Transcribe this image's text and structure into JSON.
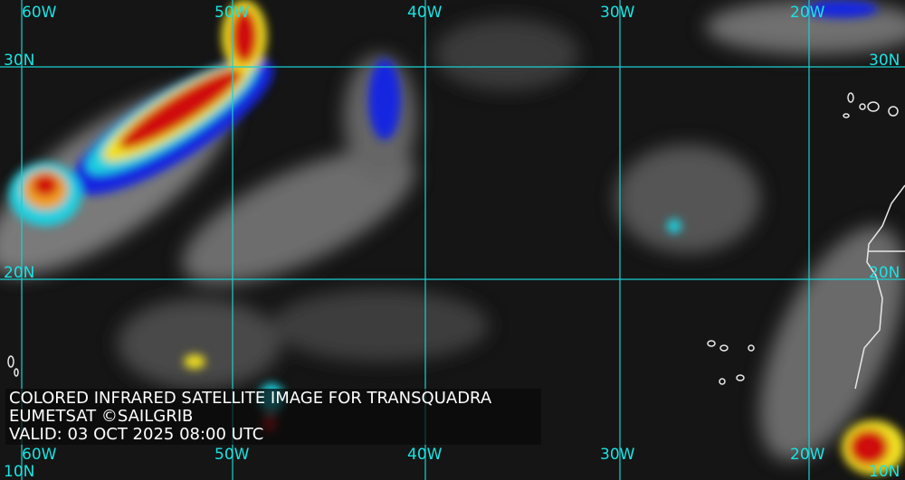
{
  "caption": {
    "title": "COLORED INFRARED SATELLITE IMAGE FOR TRANSQUADRA",
    "source": "EUMETSAT ©SAILGRIB",
    "valid": "VALID:  03 OCT 2025 08:00 UTC"
  },
  "grid": {
    "longitudes": [
      "60W",
      "50W",
      "40W",
      "30W",
      "20W"
    ],
    "latitudes": [
      "30N",
      "20N",
      "10N"
    ],
    "line_color": "#19d0d0"
  },
  "colors": {
    "ocean": "#151515",
    "cloud_gray": "#8a8a8a",
    "cold_red": "#d01010",
    "cold_yellow": "#f0e020",
    "cold_blue": "#1020e0",
    "coastline": "#e8e8e8"
  }
}
